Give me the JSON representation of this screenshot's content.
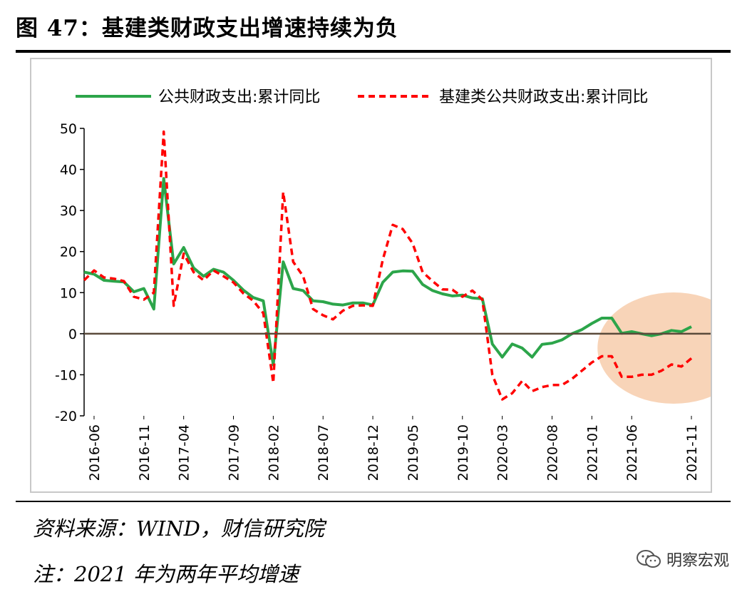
{
  "header": {
    "title": "图 47：基建类财政支出增速持续为负"
  },
  "footer": {
    "source": "资料来源：WIND，财信研究院",
    "note": "注：2021 年为两年平均增速",
    "watermark": "明察宏观"
  },
  "colors": {
    "series1": "#2ca54a",
    "series2": "#ff0000",
    "highlight": "#f8d4b8",
    "axis": "#000000",
    "zero_line": "#5a4a3a"
  },
  "chart_data": {
    "type": "line",
    "title": "",
    "xlabel": "",
    "ylabel": "",
    "ylim": [
      -20,
      50
    ],
    "yticks": [
      50,
      40,
      30,
      20,
      10,
      0,
      -10,
      -20
    ],
    "xtick_labels": [
      "2016-06",
      "2016-11",
      "2017-04",
      "2017-09",
      "2018-02",
      "2018-07",
      "2018-12",
      "2019-05",
      "2019-10",
      "2020-03",
      "2020-08",
      "2021-01",
      "2021-06",
      "2021-11"
    ],
    "legend": {
      "placement": "top"
    },
    "highlight_region": {
      "x_from": 53,
      "x_to": 66,
      "note": "circled recent period"
    },
    "x": [
      "2016-05",
      "2016-06",
      "2016-07",
      "2016-08",
      "2016-09",
      "2016-10",
      "2016-11",
      "2016-12",
      "2017-02",
      "2017-03",
      "2017-04",
      "2017-05",
      "2017-06",
      "2017-07",
      "2017-08",
      "2017-09",
      "2017-10",
      "2017-11",
      "2017-12",
      "2018-02",
      "2018-03",
      "2018-04",
      "2018-05",
      "2018-06",
      "2018-07",
      "2018-08",
      "2018-09",
      "2018-10",
      "2018-11",
      "2018-12",
      "2019-02",
      "2019-03",
      "2019-04",
      "2019-05",
      "2019-06",
      "2019-07",
      "2019-08",
      "2019-09",
      "2019-10",
      "2019-11",
      "2019-12",
      "2020-02",
      "2020-03",
      "2020-04",
      "2020-05",
      "2020-06",
      "2020-07",
      "2020-08",
      "2020-09",
      "2020-10",
      "2020-11",
      "2020-12",
      "2021-02",
      "2021-03",
      "2021-04",
      "2021-05",
      "2021-06",
      "2021-07",
      "2021-08",
      "2021-09",
      "2021-10",
      "2021-11"
    ],
    "series": [
      {
        "name": "公共财政支出:累计同比",
        "style": "solid",
        "values": [
          15,
          14.5,
          13,
          12.8,
          12.6,
          10.2,
          11,
          6,
          37.8,
          17,
          21,
          16,
          14,
          15.7,
          15,
          13,
          10.6,
          8.8,
          8,
          -7.6,
          17.5,
          11,
          10.5,
          8,
          7.8,
          7.2,
          7,
          7.5,
          7.5,
          7,
          12.5,
          15,
          15.3,
          15.2,
          12,
          10.5,
          9.7,
          9.2,
          9.4,
          8.7,
          8.5,
          -2.5,
          -5.7,
          -2.5,
          -3.5,
          -5.7,
          -2.6,
          -2.3,
          -1.5,
          0,
          1,
          2.5,
          3.8,
          3.8,
          0.1,
          0.5,
          0,
          -0.5,
          0,
          0.8,
          0.5,
          1.7
        ]
      },
      {
        "name": "基建类公共财政支出:累计同比",
        "style": "dashed",
        "values": [
          13,
          15.4,
          13.7,
          13.4,
          12.8,
          9,
          8.3,
          10,
          49.2,
          6.8,
          19.5,
          15,
          13,
          15.4,
          14,
          12.5,
          9.8,
          8,
          5,
          -12,
          34.5,
          17.5,
          14,
          6,
          4.5,
          3.5,
          5.6,
          6.8,
          6.9,
          6.8,
          18,
          26.5,
          25.5,
          22,
          15,
          12.8,
          10.8,
          10.7,
          9,
          10.5,
          8.3,
          -10,
          -16,
          -14.5,
          -11.5,
          -14,
          -13,
          -12.5,
          -12.5,
          -11,
          -9,
          -7,
          -5.5,
          -5.5,
          -10.5,
          -10.5,
          -10,
          -10,
          -9,
          -7.5,
          -8,
          -6
        ]
      }
    ]
  }
}
